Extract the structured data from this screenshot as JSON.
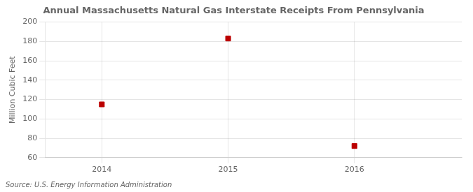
{
  "chart_data": {
    "type": "scatter",
    "title": "Annual Massachusetts Natural Gas Interstate Receipts From Pennsylvania",
    "ylabel": "Million Cubic Feet",
    "source": "Source: U.S. Energy Information Administration",
    "x": [
      2014,
      2015,
      2016
    ],
    "values": [
      115,
      183,
      72
    ],
    "color": "#bb0000",
    "marker": "square",
    "xlim": [
      2013.55,
      2016.85
    ],
    "ylim": [
      60,
      200
    ],
    "xticks": [
      2014,
      2015,
      2016
    ],
    "yticks": [
      60,
      80,
      100,
      120,
      140,
      160,
      180,
      200
    ],
    "grid": true
  }
}
